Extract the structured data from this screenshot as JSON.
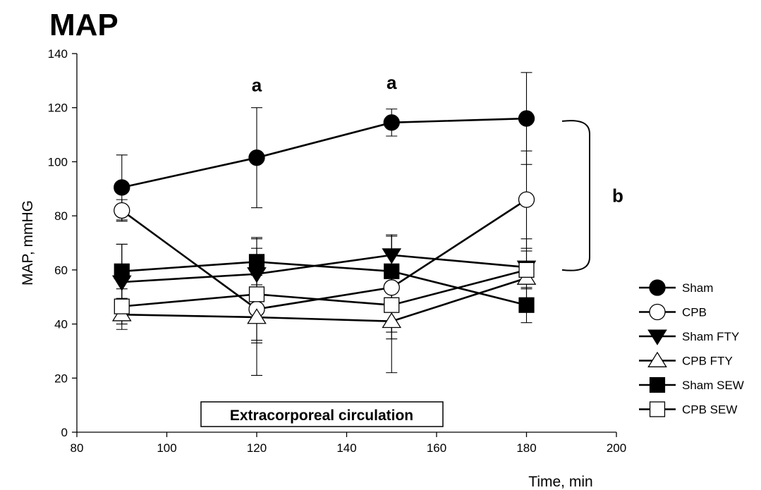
{
  "chart_data": {
    "type": "line",
    "title": "MAP",
    "xlabel": "Time, min",
    "ylabel": "MAP, mmHG",
    "xlim": [
      80,
      200
    ],
    "ylim": [
      0,
      140
    ],
    "x_ticks": [
      80,
      100,
      120,
      140,
      160,
      180,
      200
    ],
    "y_ticks": [
      0,
      20,
      40,
      60,
      80,
      100,
      120,
      140
    ],
    "x": [
      90,
      120,
      150,
      180
    ],
    "grid": false,
    "legend_position": "right",
    "series": [
      {
        "name": "Sham",
        "marker": "circle",
        "filled": true,
        "values": [
          90.5,
          101.5,
          114.5,
          116
        ],
        "errors": [
          12,
          18.5,
          5,
          17
        ]
      },
      {
        "name": "CPB",
        "marker": "circle",
        "filled": false,
        "values": [
          82,
          45.5,
          53.5,
          86
        ],
        "errors": [
          4,
          12.5,
          19,
          18
        ]
      },
      {
        "name": "Sham FTY",
        "marker": "triangle-down",
        "filled": true,
        "values": [
          55.5,
          58.5,
          65.5,
          61
        ],
        "errors": [
          14,
          13.5,
          7.5,
          6
        ]
      },
      {
        "name": "CPB FTY",
        "marker": "triangle-up",
        "filled": false,
        "values": [
          43.5,
          42.5,
          41,
          57
        ],
        "errors": [
          5.5,
          21.5,
          19,
          4
        ]
      },
      {
        "name": "Sham SEW",
        "marker": "square",
        "filled": true,
        "values": [
          59.5,
          63,
          59.5,
          47
        ],
        "errors": [
          10,
          8.5,
          13.5,
          6.5
        ]
      },
      {
        "name": "CPB SEW",
        "marker": "square",
        "filled": false,
        "values": [
          46.5,
          51,
          47,
          60
        ],
        "errors": [
          6.5,
          17,
          10,
          11.5
        ]
      }
    ],
    "annotations": [
      {
        "text": "a",
        "x": 120,
        "y": 126
      },
      {
        "text": "a",
        "x": 150,
        "y": 127
      },
      {
        "text": "b",
        "bracket_from": 60,
        "bracket_to": 115
      }
    ],
    "box_label": "Extracorporeal circulation"
  }
}
